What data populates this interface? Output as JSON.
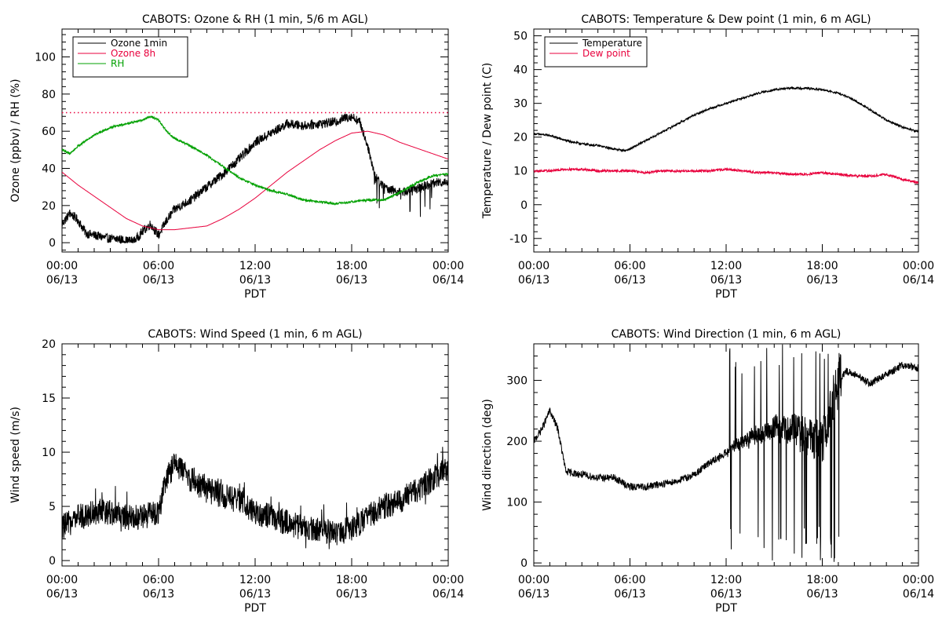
{
  "charts": [
    {
      "type": "line",
      "title": "CABOTS: Ozone & RH (1 min, 5/6 m AGL)",
      "xlabel": "PDT",
      "ylabel": "Ozone (ppbv) / RH (%)",
      "xlim": [
        0,
        24
      ],
      "ylim": [
        -5,
        115
      ],
      "yticks": [
        0,
        20,
        40,
        60,
        80,
        100
      ],
      "xtick_hours": [
        0,
        6,
        12,
        18,
        24
      ],
      "xtick_labels": [
        [
          "00:00",
          "06/13"
        ],
        [
          "06:00",
          "06/13"
        ],
        [
          "12:00",
          "06/13"
        ],
        [
          "18:00",
          "06/13"
        ],
        [
          "00:00",
          "06/14"
        ]
      ],
      "legend_position": "top-left",
      "reference_line": {
        "y": 70,
        "style": "dotted",
        "color": "#e8003c"
      },
      "series": [
        {
          "name": "Ozone 1min",
          "color": "#000000",
          "noise": 2.5,
          "x": [
            0,
            0.5,
            1,
            1.5,
            2,
            2.5,
            3,
            3.5,
            4,
            4.5,
            5,
            5.5,
            6,
            6.5,
            7,
            8,
            9,
            10,
            11,
            12,
            13,
            14,
            15,
            16,
            17,
            17.5,
            18,
            18.5,
            19,
            19.5,
            20,
            21,
            22,
            23,
            24
          ],
          "y": [
            10,
            16,
            12,
            5,
            4,
            3,
            2,
            2,
            1,
            1,
            6,
            10,
            4,
            12,
            18,
            23,
            30,
            37,
            45,
            54,
            59,
            64,
            63,
            64,
            65,
            67,
            68,
            65,
            52,
            35,
            30,
            27,
            29,
            32,
            33
          ]
        },
        {
          "name": "Ozone 8h",
          "color": "#e8003c",
          "noise": 0,
          "x": [
            0,
            1,
            2,
            3,
            4,
            5,
            6,
            7,
            8,
            9,
            10,
            11,
            12,
            13,
            14,
            15,
            16,
            17,
            18,
            19,
            20,
            21,
            22,
            23,
            24
          ],
          "y": [
            38,
            31,
            25,
            19,
            13,
            9,
            7,
            7,
            8,
            9,
            13,
            18,
            24,
            31,
            38,
            44,
            50,
            55,
            59,
            60,
            58,
            54,
            51,
            48,
            45
          ]
        },
        {
          "name": "RH",
          "color": "#00a000",
          "noise": 0.6,
          "x": [
            0,
            0.5,
            1,
            2,
            3,
            4,
            5,
            5.5,
            6,
            6.5,
            7,
            8,
            9,
            10,
            11,
            12,
            13,
            14,
            15,
            16,
            17,
            18,
            19,
            20,
            21,
            22,
            23,
            24
          ],
          "y": [
            50,
            48,
            52,
            58,
            62,
            64,
            66,
            68,
            66,
            60,
            56,
            52,
            47,
            41,
            35,
            31,
            28,
            26,
            23,
            22,
            21,
            22,
            23,
            23,
            27,
            32,
            36,
            37
          ]
        }
      ]
    },
    {
      "type": "line",
      "title": "CABOTS: Temperature & Dew point (1 min, 6 m AGL)",
      "xlabel": "PDT",
      "ylabel": "Temperature / Dew point (C)",
      "xlim": [
        0,
        24
      ],
      "ylim": [
        -14,
        52
      ],
      "yticks": [
        -10,
        0,
        10,
        20,
        30,
        40,
        50
      ],
      "xtick_hours": [
        0,
        6,
        12,
        18,
        24
      ],
      "xtick_labels": [
        [
          "00:00",
          "06/13"
        ],
        [
          "06:00",
          "06/13"
        ],
        [
          "12:00",
          "06/13"
        ],
        [
          "18:00",
          "06/13"
        ],
        [
          "00:00",
          "06/14"
        ]
      ],
      "legend_position": "top-left",
      "series": [
        {
          "name": "Temperature",
          "color": "#000000",
          "noise": 0.3,
          "x": [
            0,
            1,
            2,
            3,
            4,
            5,
            5.7,
            6,
            7,
            8,
            9,
            10,
            11,
            12,
            13,
            14,
            15,
            16,
            17,
            18,
            19,
            20,
            21,
            22,
            23,
            24
          ],
          "y": [
            21,
            20.5,
            19,
            18,
            17.5,
            16.5,
            16,
            16.5,
            19,
            21.5,
            24,
            26.5,
            28.5,
            30,
            31.5,
            33,
            34,
            34.5,
            34.5,
            34,
            33,
            31,
            28,
            25,
            23,
            21.5
          ]
        },
        {
          "name": "Dew point",
          "color": "#e8003c",
          "noise": 0.35,
          "x": [
            0,
            1,
            2,
            3,
            4,
            5,
            6,
            7,
            8,
            9,
            10,
            11,
            12,
            13,
            14,
            15,
            16,
            17,
            18,
            19,
            20,
            21,
            22,
            23,
            24
          ],
          "y": [
            10,
            10,
            10.5,
            10.5,
            10,
            10,
            10,
            9.5,
            10,
            10,
            10,
            10,
            10.5,
            10,
            9.5,
            9.5,
            9,
            9,
            9.5,
            9,
            8.5,
            8.5,
            9,
            7.5,
            6.5
          ]
        }
      ]
    },
    {
      "type": "line",
      "title": "CABOTS: Wind Speed (1 min, 6 m AGL)",
      "xlabel": "PDT",
      "ylabel": "Wind speed (m/s)",
      "xlim": [
        0,
        24
      ],
      "ylim": [
        -0.5,
        20
      ],
      "yticks": [
        0,
        5,
        10,
        15,
        20
      ],
      "xtick_hours": [
        0,
        6,
        12,
        18,
        24
      ],
      "xtick_labels": [
        [
          "00:00",
          "06/13"
        ],
        [
          "06:00",
          "06/13"
        ],
        [
          "12:00",
          "06/13"
        ],
        [
          "18:00",
          "06/13"
        ],
        [
          "00:00",
          "06/14"
        ]
      ],
      "series": [
        {
          "name": "",
          "color": "#000000",
          "noise": 1.2,
          "x": [
            0,
            1,
            2,
            3,
            4,
            5,
            6,
            6.5,
            7,
            8,
            9,
            10,
            11,
            12,
            13,
            14,
            15,
            16,
            17,
            18,
            19,
            20,
            21,
            22,
            23,
            24
          ],
          "y": [
            3,
            4,
            4.5,
            4.5,
            4,
            4,
            4.5,
            7.5,
            9,
            7.5,
            6.5,
            6,
            5.5,
            4.5,
            4,
            3.5,
            3,
            3,
            2.5,
            3,
            4,
            5,
            5.5,
            6.5,
            7.5,
            8.5
          ]
        }
      ]
    },
    {
      "type": "line",
      "title": "CABOTS: Wind Direction (1 min, 6 m AGL)",
      "xlabel": "PDT",
      "ylabel": "Wind direction (deg)",
      "xlim": [
        0,
        24
      ],
      "ylim": [
        -5,
        360
      ],
      "yticks": [
        0,
        100,
        200,
        300
      ],
      "xtick_hours": [
        0,
        6,
        12,
        18,
        24
      ],
      "xtick_labels": [
        [
          "00:00",
          "06/13"
        ],
        [
          "06:00",
          "06/13"
        ],
        [
          "12:00",
          "06/13"
        ],
        [
          "18:00",
          "06/13"
        ],
        [
          "00:00",
          "06/14"
        ]
      ],
      "series": [
        {
          "name": "",
          "color": "#000000",
          "noise": 6,
          "x": [
            0,
            0.5,
            1,
            1.5,
            2,
            3,
            4,
            5,
            6,
            7,
            8,
            9,
            10,
            11,
            12,
            13,
            14,
            15,
            16,
            17,
            18,
            19,
            19.5,
            20,
            21,
            22,
            23,
            24
          ],
          "y": [
            200,
            220,
            250,
            220,
            150,
            145,
            140,
            140,
            125,
            125,
            130,
            135,
            145,
            165,
            180,
            200,
            210,
            220,
            220,
            210,
            200,
            300,
            315,
            310,
            295,
            310,
            325,
            320
          ]
        }
      ]
    }
  ]
}
